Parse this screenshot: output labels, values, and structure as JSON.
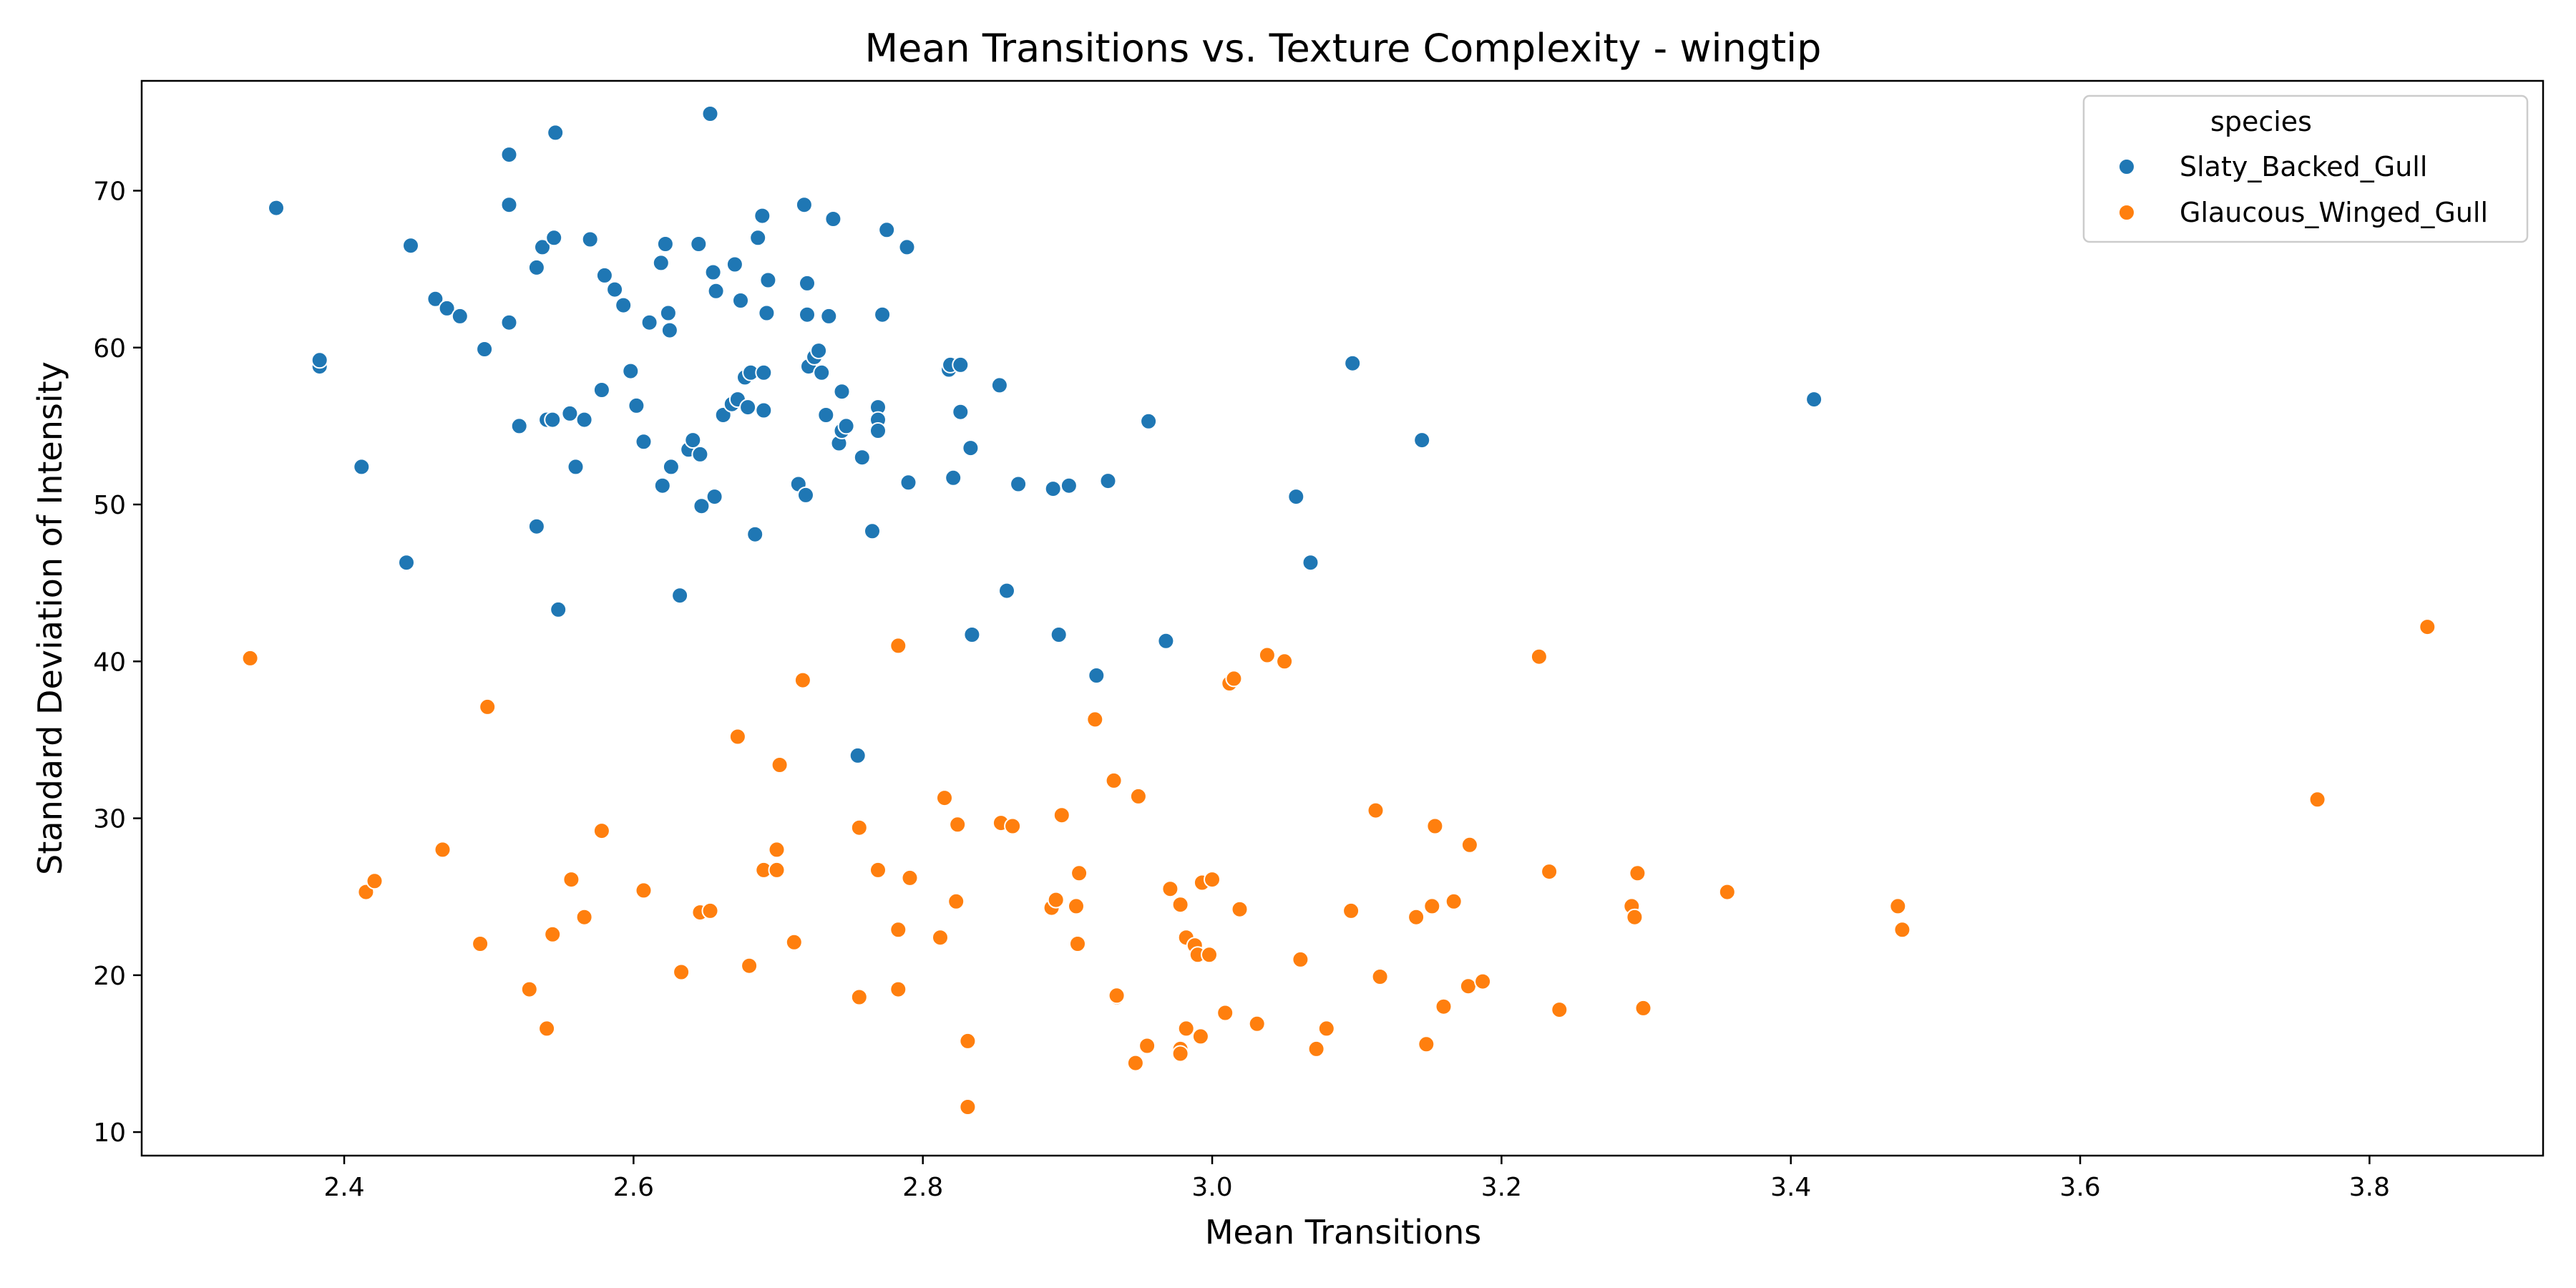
{
  "chart_data": {
    "type": "scatter",
    "title": "Mean Transitions vs. Texture Complexity - wingtip",
    "xlabel": "Mean Transitions",
    "ylabel": "Standard Deviation of Intensity",
    "xlim": [
      2.26,
      3.92
    ],
    "ylim": [
      8.5,
      77
    ],
    "xticks": [
      2.4,
      2.6,
      2.8,
      3.0,
      3.2,
      3.4,
      3.6,
      3.8
    ],
    "xtick_labels": [
      "2.4",
      "2.6",
      "2.8",
      "3.0",
      "3.2",
      "3.4",
      "3.6",
      "3.8"
    ],
    "yticks": [
      10,
      20,
      30,
      40,
      50,
      60,
      70
    ],
    "ytick_labels": [
      "10",
      "20",
      "30",
      "40",
      "50",
      "60",
      "70"
    ],
    "grid": false,
    "legend": {
      "title": "species",
      "placement": "top-right"
    },
    "series": [
      {
        "name": "Slaty_Backed_Gull",
        "color": "#1f77b4",
        "points": [
          [
            2.353,
            68.9
          ],
          [
            2.383,
            58.8
          ],
          [
            2.383,
            59.2
          ],
          [
            2.412,
            52.4
          ],
          [
            2.443,
            46.3
          ],
          [
            2.446,
            66.5
          ],
          [
            2.463,
            63.1
          ],
          [
            2.471,
            62.5
          ],
          [
            2.48,
            62.0
          ],
          [
            2.497,
            59.9
          ],
          [
            2.514,
            72.3
          ],
          [
            2.514,
            69.1
          ],
          [
            2.514,
            61.6
          ],
          [
            2.521,
            55.0
          ],
          [
            2.533,
            48.6
          ],
          [
            2.533,
            65.1
          ],
          [
            2.537,
            66.4
          ],
          [
            2.54,
            55.4
          ],
          [
            2.544,
            55.4
          ],
          [
            2.545,
            67.0
          ],
          [
            2.546,
            73.7
          ],
          [
            2.548,
            43.3
          ],
          [
            2.556,
            55.8
          ],
          [
            2.56,
            52.4
          ],
          [
            2.566,
            55.4
          ],
          [
            2.57,
            66.9
          ],
          [
            2.578,
            57.3
          ],
          [
            2.58,
            64.6
          ],
          [
            2.587,
            63.7
          ],
          [
            2.593,
            62.7
          ],
          [
            2.598,
            58.5
          ],
          [
            2.602,
            56.3
          ],
          [
            2.607,
            54.0
          ],
          [
            2.611,
            61.6
          ],
          [
            2.619,
            65.4
          ],
          [
            2.62,
            51.2
          ],
          [
            2.622,
            66.6
          ],
          [
            2.624,
            62.2
          ],
          [
            2.625,
            61.1
          ],
          [
            2.626,
            52.4
          ],
          [
            2.632,
            44.2
          ],
          [
            2.638,
            53.5
          ],
          [
            2.641,
            54.1
          ],
          [
            2.645,
            66.6
          ],
          [
            2.646,
            53.2
          ],
          [
            2.647,
            49.9
          ],
          [
            2.653,
            74.9
          ],
          [
            2.655,
            64.8
          ],
          [
            2.656,
            50.5
          ],
          [
            2.657,
            63.6
          ],
          [
            2.662,
            55.7
          ],
          [
            2.668,
            56.4
          ],
          [
            2.67,
            65.3
          ],
          [
            2.672,
            56.7
          ],
          [
            2.674,
            63.0
          ],
          [
            2.677,
            58.1
          ],
          [
            2.679,
            56.2
          ],
          [
            2.681,
            58.4
          ],
          [
            2.684,
            48.1
          ],
          [
            2.686,
            67.0
          ],
          [
            2.689,
            68.4
          ],
          [
            2.69,
            58.4
          ],
          [
            2.69,
            56.0
          ],
          [
            2.692,
            62.2
          ],
          [
            2.693,
            64.3
          ],
          [
            2.714,
            51.3
          ],
          [
            2.718,
            69.1
          ],
          [
            2.719,
            50.6
          ],
          [
            2.72,
            64.1
          ],
          [
            2.72,
            62.1
          ],
          [
            2.721,
            58.8
          ],
          [
            2.725,
            59.4
          ],
          [
            2.728,
            59.8
          ],
          [
            2.73,
            58.4
          ],
          [
            2.733,
            55.7
          ],
          [
            2.735,
            62.0
          ],
          [
            2.738,
            68.2
          ],
          [
            2.742,
            53.9
          ],
          [
            2.744,
            57.2
          ],
          [
            2.744,
            54.7
          ],
          [
            2.747,
            55.0
          ],
          [
            2.758,
            53.0
          ],
          [
            2.765,
            48.3
          ],
          [
            2.769,
            56.2
          ],
          [
            2.769,
            55.4
          ],
          [
            2.769,
            54.7
          ],
          [
            2.772,
            62.1
          ],
          [
            2.775,
            67.5
          ],
          [
            2.789,
            66.4
          ],
          [
            2.79,
            51.4
          ],
          [
            2.818,
            58.6
          ],
          [
            2.819,
            58.9
          ],
          [
            2.821,
            51.7
          ],
          [
            2.826,
            58.9
          ],
          [
            2.826,
            55.9
          ],
          [
            2.833,
            53.6
          ],
          [
            2.834,
            41.7
          ],
          [
            2.853,
            57.6
          ],
          [
            2.858,
            44.5
          ],
          [
            2.866,
            51.3
          ],
          [
            2.89,
            51.0
          ],
          [
            2.894,
            41.7
          ],
          [
            2.901,
            51.2
          ],
          [
            2.92,
            39.1
          ],
          [
            2.928,
            51.5
          ],
          [
            2.956,
            55.3
          ],
          [
            2.968,
            41.3
          ],
          [
            2.755,
            34.0
          ],
          [
            3.058,
            50.5
          ],
          [
            3.068,
            46.3
          ],
          [
            3.097,
            59.0
          ],
          [
            3.145,
            54.1
          ],
          [
            3.416,
            56.7
          ]
        ]
      },
      {
        "name": "Glaucous_Winged_Gull",
        "color": "#ff7f0e",
        "points": [
          [
            2.335,
            40.2
          ],
          [
            2.415,
            25.3
          ],
          [
            2.421,
            26.0
          ],
          [
            2.468,
            28.0
          ],
          [
            2.494,
            22.0
          ],
          [
            2.499,
            37.1
          ],
          [
            2.528,
            19.1
          ],
          [
            2.54,
            16.6
          ],
          [
            2.544,
            22.6
          ],
          [
            2.557,
            26.1
          ],
          [
            2.566,
            23.7
          ],
          [
            2.578,
            29.2
          ],
          [
            2.607,
            25.4
          ],
          [
            2.633,
            20.2
          ],
          [
            2.646,
            24.0
          ],
          [
            2.653,
            24.1
          ],
          [
            2.672,
            35.2
          ],
          [
            2.68,
            20.6
          ],
          [
            2.69,
            26.7
          ],
          [
            2.699,
            26.7
          ],
          [
            2.699,
            28.0
          ],
          [
            2.701,
            33.4
          ],
          [
            2.711,
            22.1
          ],
          [
            2.717,
            38.8
          ],
          [
            2.756,
            29.4
          ],
          [
            2.756,
            18.6
          ],
          [
            2.769,
            26.7
          ],
          [
            2.783,
            41.0
          ],
          [
            2.783,
            22.9
          ],
          [
            2.783,
            19.1
          ],
          [
            2.791,
            26.2
          ],
          [
            2.812,
            22.4
          ],
          [
            2.815,
            31.3
          ],
          [
            2.823,
            24.7
          ],
          [
            2.824,
            29.6
          ],
          [
            2.831,
            15.8
          ],
          [
            2.831,
            11.6
          ],
          [
            2.854,
            29.7
          ],
          [
            2.862,
            29.5
          ],
          [
            2.889,
            24.3
          ],
          [
            2.892,
            24.8
          ],
          [
            2.896,
            30.2
          ],
          [
            2.906,
            24.4
          ],
          [
            2.907,
            22.0
          ],
          [
            2.908,
            26.5
          ],
          [
            2.919,
            36.3
          ],
          [
            2.932,
            32.4
          ],
          [
            2.934,
            18.6
          ],
          [
            2.934,
            18.7
          ],
          [
            2.947,
            14.4
          ],
          [
            2.949,
            31.4
          ],
          [
            2.955,
            15.5
          ],
          [
            2.971,
            25.5
          ],
          [
            2.978,
            24.5
          ],
          [
            2.978,
            15.3
          ],
          [
            2.978,
            15.0
          ],
          [
            2.982,
            16.6
          ],
          [
            2.982,
            22.4
          ],
          [
            2.988,
            21.9
          ],
          [
            2.99,
            21.3
          ],
          [
            2.992,
            16.1
          ],
          [
            2.993,
            25.9
          ],
          [
            2.998,
            21.3
          ],
          [
            3.0,
            26.1
          ],
          [
            3.009,
            17.6
          ],
          [
            3.012,
            38.6
          ],
          [
            3.015,
            38.9
          ],
          [
            3.019,
            24.2
          ],
          [
            3.031,
            16.9
          ],
          [
            3.038,
            40.4
          ],
          [
            3.05,
            40.0
          ],
          [
            3.061,
            21.0
          ],
          [
            3.072,
            15.3
          ],
          [
            3.079,
            16.6
          ],
          [
            3.096,
            24.1
          ],
          [
            3.113,
            30.5
          ],
          [
            3.116,
            19.9
          ],
          [
            3.141,
            23.7
          ],
          [
            3.148,
            15.6
          ],
          [
            3.152,
            24.4
          ],
          [
            3.154,
            29.5
          ],
          [
            3.16,
            18.0
          ],
          [
            3.167,
            24.7
          ],
          [
            3.177,
            19.3
          ],
          [
            3.178,
            28.3
          ],
          [
            3.187,
            19.6
          ],
          [
            3.226,
            40.3
          ],
          [
            3.233,
            26.6
          ],
          [
            3.24,
            17.8
          ],
          [
            3.29,
            24.4
          ],
          [
            3.292,
            23.7
          ],
          [
            3.294,
            26.5
          ],
          [
            3.298,
            17.9
          ],
          [
            3.356,
            25.3
          ],
          [
            3.474,
            24.4
          ],
          [
            3.477,
            22.9
          ],
          [
            3.764,
            31.2
          ],
          [
            3.84,
            42.2
          ]
        ]
      }
    ]
  }
}
